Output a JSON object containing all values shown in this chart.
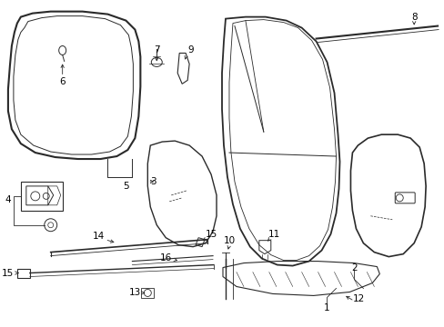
{
  "bg_color": "#ffffff",
  "line_color": "#2a2a2a",
  "figsize": [
    4.89,
    3.6
  ],
  "dpi": 100,
  "xlim": [
    0,
    489
  ],
  "ylim": [
    0,
    360
  ]
}
